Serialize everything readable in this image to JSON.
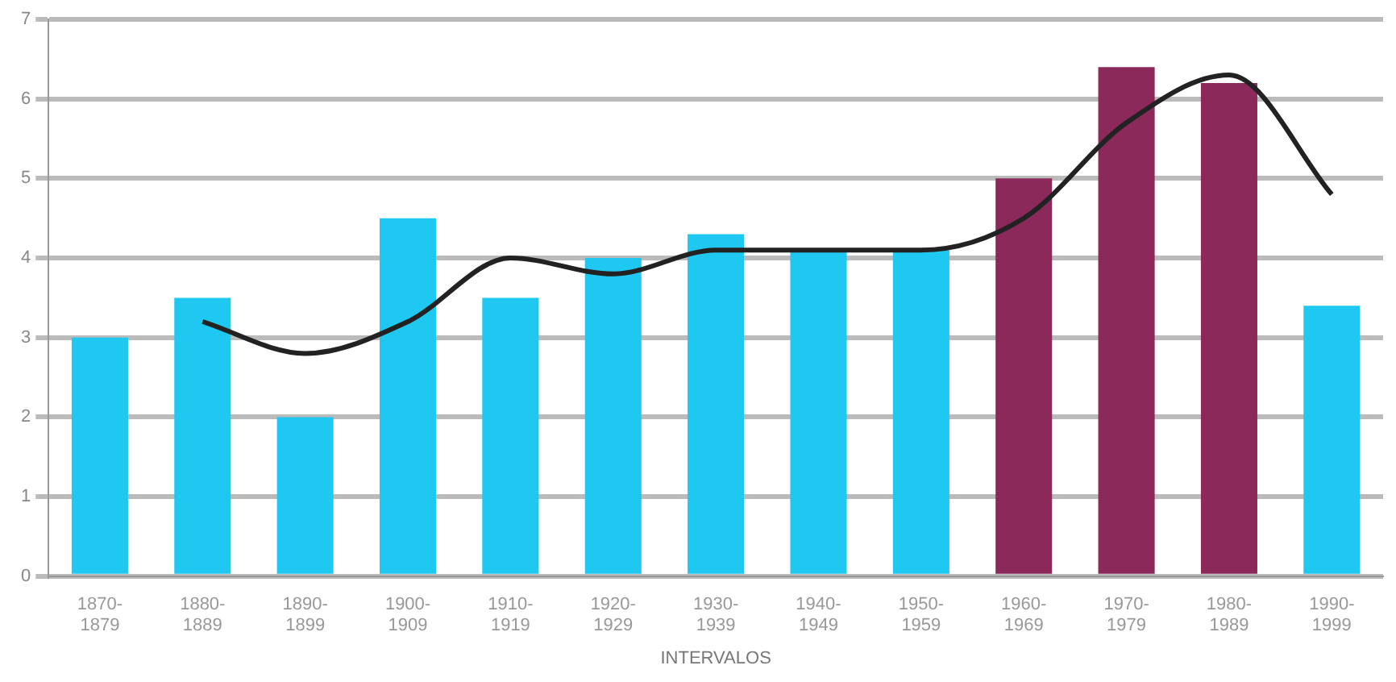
{
  "chart_data": {
    "type": "bar",
    "xlabel": "INTERVALOS",
    "categories": [
      "1870-1879",
      "1880-1889",
      "1890-1899",
      "1900-1909",
      "1910-1919",
      "1920-1929",
      "1930-1939",
      "1940-1949",
      "1950-1959",
      "1960-1969",
      "1970-1979",
      "1980-1989",
      "1990-1999"
    ],
    "series": [
      {
        "colors": [
          "#1ec8f0",
          "#1ec8f0",
          "#1ec8f0",
          "#1ec8f0",
          "#1ec8f0",
          "#1ec8f0",
          "#1ec8f0",
          "#1ec8f0",
          "#1ec8f0",
          "#8b2a5a",
          "#8b2a5a",
          "#8b2a5a",
          "#1ec8f0"
        ],
        "values": [
          3.0,
          3.5,
          2.0,
          4.5,
          3.5,
          4.0,
          4.3,
          4.1,
          4.1,
          5.0,
          6.4,
          6.2,
          3.4
        ]
      },
      {
        "type": "line",
        "color": "#222222",
        "values": [
          null,
          3.2,
          2.8,
          3.2,
          4.0,
          3.8,
          4.1,
          4.1,
          4.1,
          4.5,
          5.7,
          6.3,
          4.8
        ]
      }
    ],
    "ylim": [
      0,
      7
    ],
    "yticks": [
      0,
      1,
      2,
      3,
      4,
      5,
      6,
      7
    ],
    "grid": "y",
    "legend": false,
    "marker": "none"
  }
}
